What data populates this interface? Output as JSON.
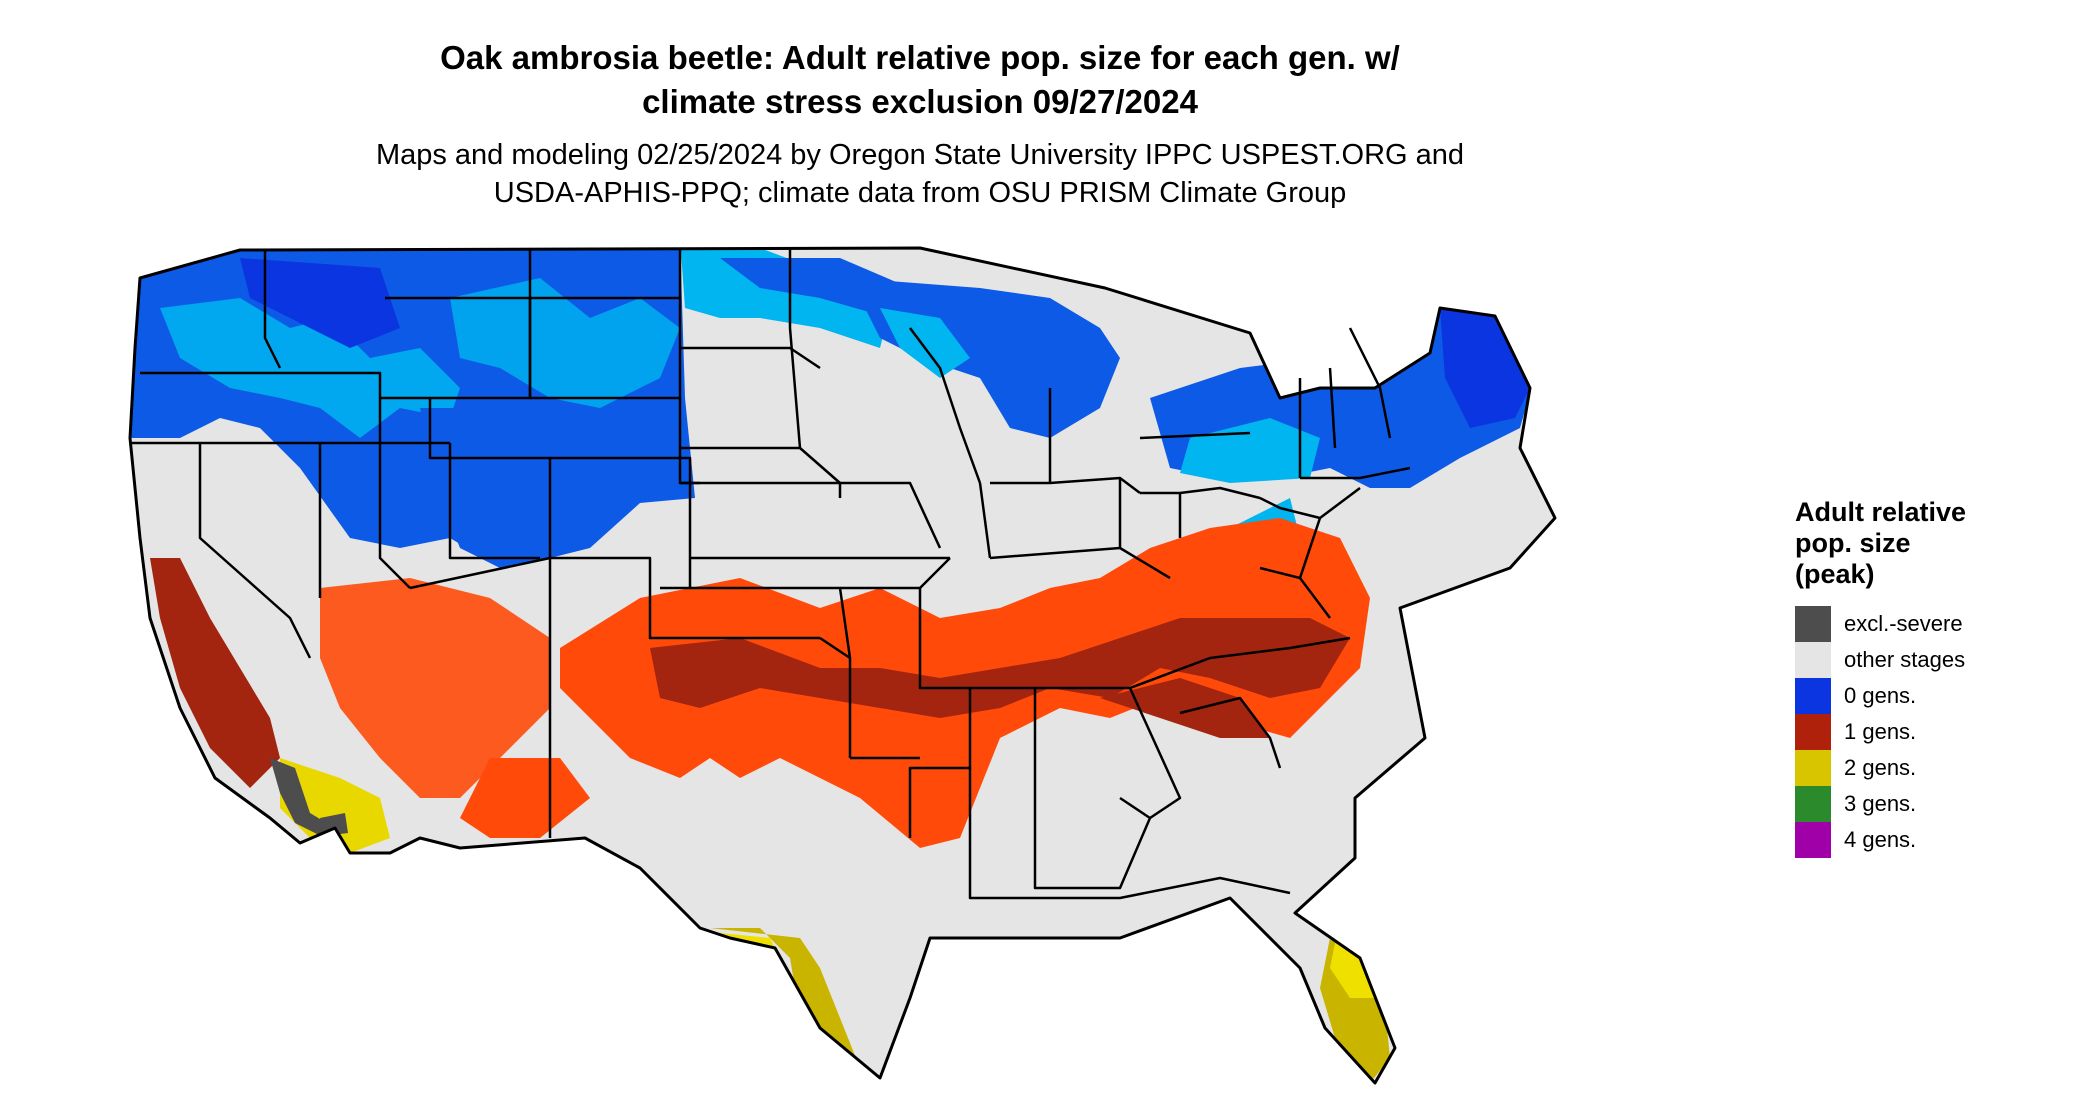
{
  "title": {
    "line1": "Oak ambrosia beetle: Adult relative pop. size for each gen. w/",
    "line2": "climate stress exclusion 09/27/2024"
  },
  "subtitle": {
    "line1": "Maps and modeling 02/25/2024 by Oregon State University IPPC USPEST.ORG and",
    "line2": "USDA-APHIS-PPQ; climate data from OSU PRISM Climate Group"
  },
  "legend": {
    "title_lines": [
      "Adult relative",
      "pop. size",
      "(peak)"
    ],
    "items": [
      {
        "label": "excl.-severe",
        "color": "#4d4d4d"
      },
      {
        "label": "other stages",
        "color": "#e5e5e5"
      },
      {
        "label": "0 gens.",
        "color": "#0a35e0"
      },
      {
        "label": "1 gens.",
        "color": "#b0210c"
      },
      {
        "label": "2 gens.",
        "color": "#d9c400"
      },
      {
        "label": "3 gens.",
        "color": "#2b8a2b"
      },
      {
        "label": "4 gens.",
        "color": "#a000a8"
      }
    ]
  },
  "map_colors": {
    "other_stages": "#e5e5e5",
    "cold_light_blue": "#00b5f0",
    "cold_blue": "#0d5ae6",
    "cold_dark_blue": "#0a35e0",
    "gen1_orange": "#ff4a0a",
    "gen1_brown": "#a3240f",
    "gen2_yellow": "#f0e000",
    "gen2_olive": "#c9b400",
    "excluded_gray": "#4d4d4d",
    "state_border": "#000000"
  }
}
